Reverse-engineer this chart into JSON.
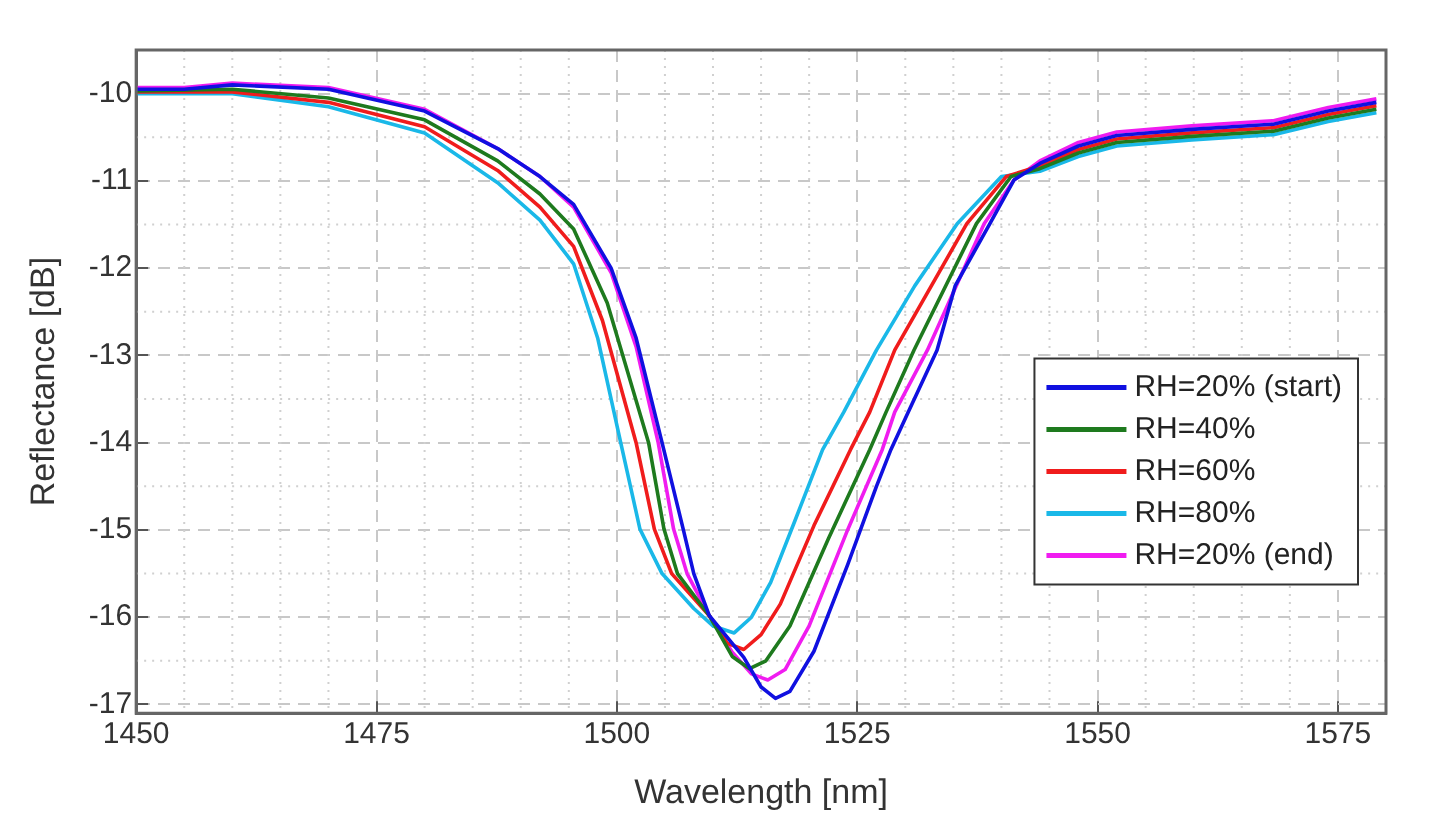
{
  "chart_data": {
    "type": "line",
    "xlabel": "Wavelength [nm]",
    "ylabel": "Reflectance [dB]",
    "xlim": [
      1450,
      1580
    ],
    "xticks": [
      1450,
      1475,
      1500,
      1525,
      1550,
      1575
    ],
    "ylim": [
      -17.1,
      -9.5
    ],
    "yticks": [
      -17,
      -16,
      -15,
      -14,
      -13,
      -12,
      -11,
      -10
    ],
    "grid": true,
    "legend": "right",
    "marker": "none",
    "line_style": "solid",
    "series": [
      {
        "name": "RH=20% (start)",
        "color": "#1010e0",
        "x": [
          1450,
          1455,
          1460,
          1470,
          1480,
          1487.6,
          1492,
          1495.5,
          1499.4,
          1502,
          1504.7,
          1506.9,
          1508,
          1509.6,
          1513.2,
          1515,
          1516.5,
          1518,
          1520.5,
          1524,
          1527,
          1528.5,
          1530.3,
          1533.3,
          1535.2,
          1538.8,
          1541.3,
          1544,
          1548,
          1552,
          1559.8,
          1568.3,
          1574,
          1579
        ],
        "values": [
          -9.95,
          -9.95,
          -9.9,
          -9.95,
          -10.2,
          -10.63,
          -10.95,
          -11.27,
          -12.0,
          -12.8,
          -14.0,
          -14.99,
          -15.5,
          -15.98,
          -16.46,
          -16.8,
          -16.93,
          -16.85,
          -16.39,
          -15.4,
          -14.5,
          -14.08,
          -13.65,
          -12.94,
          -12.2,
          -11.49,
          -10.99,
          -10.8,
          -10.6,
          -10.48,
          -10.41,
          -10.35,
          -10.2,
          -10.1
        ]
      },
      {
        "name": "RH=40%",
        "color": "#1e7a1e",
        "x": [
          1450,
          1460,
          1470,
          1480,
          1487.6,
          1492,
          1495.5,
          1499,
          1503.3,
          1504.9,
          1506.3,
          1509.6,
          1512,
          1513.8,
          1515.5,
          1518,
          1522,
          1526.3,
          1528,
          1530.9,
          1537.4,
          1541,
          1544,
          1548,
          1552,
          1559.8,
          1568.3,
          1574,
          1579
        ],
        "values": [
          -9.97,
          -9.95,
          -10.05,
          -10.3,
          -10.77,
          -11.15,
          -11.55,
          -12.4,
          -14.0,
          -14.99,
          -15.5,
          -15.98,
          -16.45,
          -16.59,
          -16.5,
          -16.1,
          -15.1,
          -14.08,
          -13.65,
          -12.94,
          -11.49,
          -10.95,
          -10.86,
          -10.68,
          -10.56,
          -10.49,
          -10.43,
          -10.28,
          -10.18
        ]
      },
      {
        "name": "RH=60%",
        "color": "#f01c1c",
        "x": [
          1450,
          1460,
          1470,
          1480,
          1487.6,
          1492,
          1495.5,
          1498.5,
          1502,
          1503.9,
          1505.7,
          1509.6,
          1511.5,
          1513.2,
          1515,
          1517,
          1520.5,
          1524.3,
          1526.3,
          1528.9,
          1536.4,
          1540.5,
          1544,
          1548,
          1552,
          1559.8,
          1568.3,
          1574,
          1579
        ],
        "values": [
          -9.98,
          -9.98,
          -10.1,
          -10.38,
          -10.88,
          -11.3,
          -11.75,
          -12.6,
          -14.0,
          -14.99,
          -15.5,
          -15.98,
          -16.3,
          -16.37,
          -16.2,
          -15.85,
          -14.95,
          -14.08,
          -13.65,
          -12.94,
          -11.49,
          -10.95,
          -10.83,
          -10.64,
          -10.52,
          -10.45,
          -10.39,
          -10.24,
          -10.14
        ]
      },
      {
        "name": "RH=80%",
        "color": "#1ab8e8",
        "x": [
          1450,
          1460,
          1470,
          1480,
          1487.6,
          1492,
          1495.5,
          1498,
          1500.4,
          1502.4,
          1504.7,
          1508,
          1510,
          1512.2,
          1514,
          1516,
          1518.5,
          1521.4,
          1523.6,
          1527,
          1531,
          1535.4,
          1540,
          1544,
          1548,
          1552,
          1559.8,
          1568.3,
          1574,
          1579
        ],
        "values": [
          -10.0,
          -10.0,
          -10.15,
          -10.45,
          -11.02,
          -11.45,
          -11.95,
          -12.8,
          -14.0,
          -14.99,
          -15.5,
          -15.9,
          -16.1,
          -16.18,
          -16.0,
          -15.6,
          -14.9,
          -14.08,
          -13.65,
          -12.94,
          -12.2,
          -11.49,
          -10.95,
          -10.89,
          -10.72,
          -10.6,
          -10.53,
          -10.47,
          -10.32,
          -10.22
        ]
      },
      {
        "name": "RH=20% (end)",
        "color": "#f01cf0",
        "x": [
          1450,
          1455,
          1460,
          1470,
          1480,
          1487.6,
          1492,
          1495.5,
          1499.4,
          1502,
          1504.3,
          1505.9,
          1507.3,
          1509.6,
          1512,
          1514,
          1515.7,
          1517.5,
          1520,
          1524,
          1527.6,
          1528.9,
          1532.3,
          1538.2,
          1541.3,
          1544,
          1548,
          1552,
          1559.8,
          1568.3,
          1574,
          1579
        ],
        "values": [
          -9.93,
          -9.93,
          -9.88,
          -9.93,
          -10.18,
          -10.63,
          -10.95,
          -11.3,
          -12.05,
          -12.9,
          -14.0,
          -14.99,
          -15.5,
          -15.98,
          -16.4,
          -16.65,
          -16.72,
          -16.6,
          -16.1,
          -15.0,
          -14.08,
          -13.65,
          -12.94,
          -11.49,
          -10.99,
          -10.77,
          -10.56,
          -10.44,
          -10.37,
          -10.31,
          -10.16,
          -10.06
        ]
      }
    ]
  }
}
